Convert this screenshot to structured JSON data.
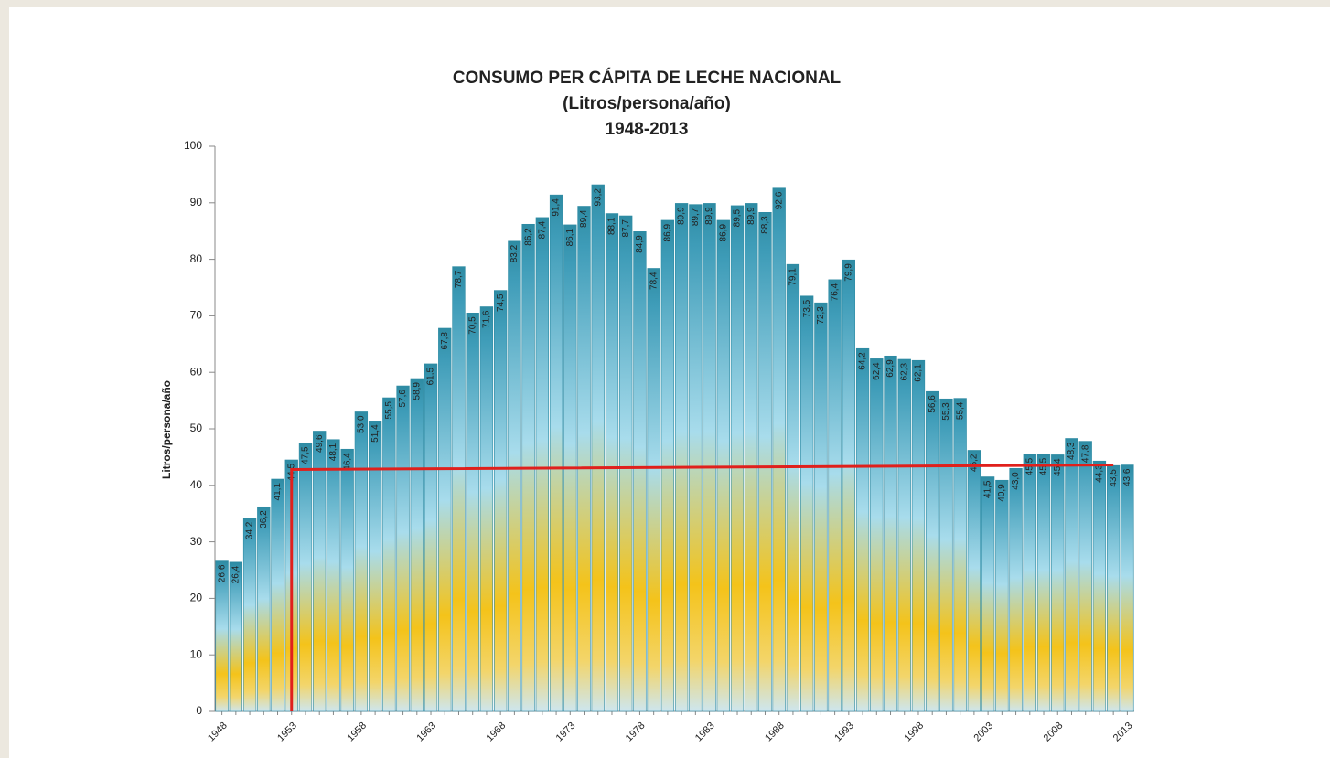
{
  "chart_data": {
    "type": "bar",
    "title": [
      "CONSUMO PER CÁPITA DE LECHE NACIONAL",
      "(Litros/persona/año)",
      "1948-2013"
    ],
    "y_label": "Litros/persona/año",
    "categories": [
      "1948",
      null,
      null,
      null,
      null,
      "1953",
      null,
      null,
      null,
      null,
      "1958",
      null,
      null,
      null,
      null,
      "1963",
      null,
      null,
      null,
      null,
      "1968",
      null,
      null,
      null,
      null,
      "1973",
      null,
      null,
      null,
      null,
      "1978",
      null,
      null,
      null,
      null,
      "1983",
      null,
      null,
      null,
      null,
      "1988",
      null,
      null,
      null,
      null,
      "1993",
      null,
      null,
      null,
      null,
      "1998",
      null,
      null,
      null,
      null,
      "2003",
      null,
      null,
      null,
      null,
      "2008",
      null,
      null,
      null,
      null,
      "2013"
    ],
    "values": [
      26.6,
      26.4,
      34.2,
      36.2,
      41.1,
      44.5,
      47.5,
      49.6,
      48.1,
      46.4,
      53.0,
      51.4,
      55.5,
      57.6,
      58.9,
      61.5,
      67.8,
      78.7,
      70.5,
      71.6,
      74.5,
      83.2,
      86.2,
      87.4,
      91.4,
      86.1,
      89.4,
      93.2,
      88.1,
      87.7,
      84.9,
      78.4,
      86.9,
      89.9,
      89.7,
      89.9,
      86.9,
      89.5,
      89.9,
      88.3,
      92.6,
      79.1,
      73.5,
      72.3,
      76.4,
      79.9,
      64.2,
      62.4,
      62.9,
      62.3,
      62.1,
      56.6,
      55.3,
      55.4,
      46.2,
      41.5,
      40.9,
      43.0,
      45.5,
      45.5,
      45.4,
      48.3,
      47.8,
      44.3,
      43.5,
      43.6
    ],
    "value_labels": [
      "26,6",
      "26,4",
      "34,2",
      "36,2",
      "41,1",
      "44,5",
      "47,5",
      "49,6",
      "48,1",
      "46,4",
      "53,0",
      "51,4",
      "55,5",
      "57,6",
      "58,9",
      "61,5",
      "67,8",
      "78,7",
      "70,5",
      "71,6",
      "74,5",
      "83,2",
      "86,2",
      "87,4",
      "91,4",
      "86,1",
      "89,4",
      "93,2",
      "88,1",
      "87,7",
      "84,9",
      "78,4",
      "86,9",
      "89,9",
      "89,7",
      "89,9",
      "86,9",
      "89,5",
      "89,9",
      "88,3",
      "92,6",
      "79,1",
      "73,5",
      "72,3",
      "76,4",
      "79,9",
      "64,2",
      "62,4",
      "62,9",
      "62,3",
      "62,1",
      "56,6",
      "55,3",
      "55,4",
      "46,2",
      "41,5",
      "40,9",
      "43,0",
      "45,5",
      "45,5",
      "45,4",
      "48,3",
      "47,8",
      "44,3",
      "43,5",
      "43,6"
    ],
    "color": "#2e8ba3",
    "trend_line": {
      "x": [
        1953,
        1953,
        2012
      ],
      "values": [
        0,
        42.8,
        43.6
      ],
      "color": "#e0201c"
    },
    "ylim": [
      0,
      100
    ],
    "yticks": [
      0,
      10,
      20,
      30,
      40,
      50,
      60,
      70,
      80,
      90,
      100
    ],
    "grid": false
  }
}
